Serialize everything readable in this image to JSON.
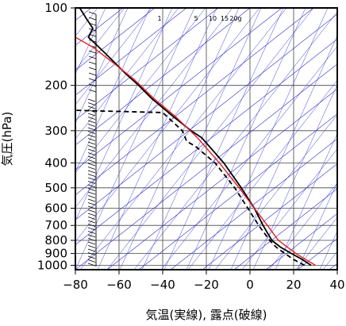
{
  "chart_data": {
    "type": "line",
    "title": "",
    "xlabel": "気温(実線), 露点(破線)",
    "ylabel": "気圧(hPa)",
    "xlim": [
      -80,
      40
    ],
    "ylim": [
      1040,
      100
    ],
    "y_scale": "log",
    "grid": true,
    "x_ticks": [
      -80,
      -60,
      -40,
      -20,
      0,
      20,
      40
    ],
    "x_tick_labels": [
      "−80",
      "−60",
      "−40",
      "−20",
      "0",
      "20",
      "40"
    ],
    "y_ticks": [
      100,
      200,
      300,
      400,
      500,
      600,
      700,
      800,
      900,
      1000
    ],
    "y_tick_labels": [
      "100",
      "200",
      "300",
      "400",
      "500",
      "600",
      "700",
      "800",
      "900",
      "1000"
    ],
    "mixing_ratio_labels": [
      "1",
      "5",
      "10",
      "15",
      "20g"
    ],
    "series": [
      {
        "style": "solid",
        "color": "#000000",
        "points": [
          [
            28,
            1000
          ],
          [
            24,
            950
          ],
          [
            19,
            900
          ],
          [
            14,
            850
          ],
          [
            10,
            800
          ],
          [
            6,
            700
          ],
          [
            2,
            600
          ],
          [
            -4,
            500
          ],
          [
            -12,
            400
          ],
          [
            -22,
            320
          ],
          [
            -27,
            300
          ],
          [
            -35,
            265
          ],
          [
            -45,
            225
          ],
          [
            -51,
            200
          ],
          [
            -57,
            180
          ],
          [
            -63,
            160
          ],
          [
            -70,
            140
          ],
          [
            -74,
            130
          ],
          [
            -72,
            120
          ],
          [
            -75,
            110
          ],
          [
            -78,
            100
          ]
        ]
      },
      {
        "style": "dashed",
        "color": "#000000",
        "points": [
          [
            25,
            1000
          ],
          [
            20,
            950
          ],
          [
            16,
            900
          ],
          [
            12,
            850
          ],
          [
            9,
            800
          ],
          [
            4,
            700
          ],
          [
            -1,
            600
          ],
          [
            -7,
            500
          ],
          [
            -16,
            400
          ],
          [
            -25,
            345
          ],
          [
            -29,
            330
          ],
          [
            -31,
            300
          ],
          [
            -40,
            255
          ],
          [
            -80,
            250
          ]
        ]
      },
      {
        "style": "solid",
        "color": "#e02020",
        "points": [
          [
            30,
            1000
          ],
          [
            21,
            900
          ],
          [
            13,
            800
          ],
          [
            8,
            700
          ],
          [
            2,
            600
          ],
          [
            -5,
            500
          ],
          [
            -14,
            400
          ],
          [
            -24,
            320
          ],
          [
            -34,
            265
          ],
          [
            -44,
            225
          ],
          [
            -53,
            190
          ],
          [
            -62,
            165
          ],
          [
            -72,
            142
          ],
          [
            -80,
            130
          ]
        ]
      }
    ]
  }
}
